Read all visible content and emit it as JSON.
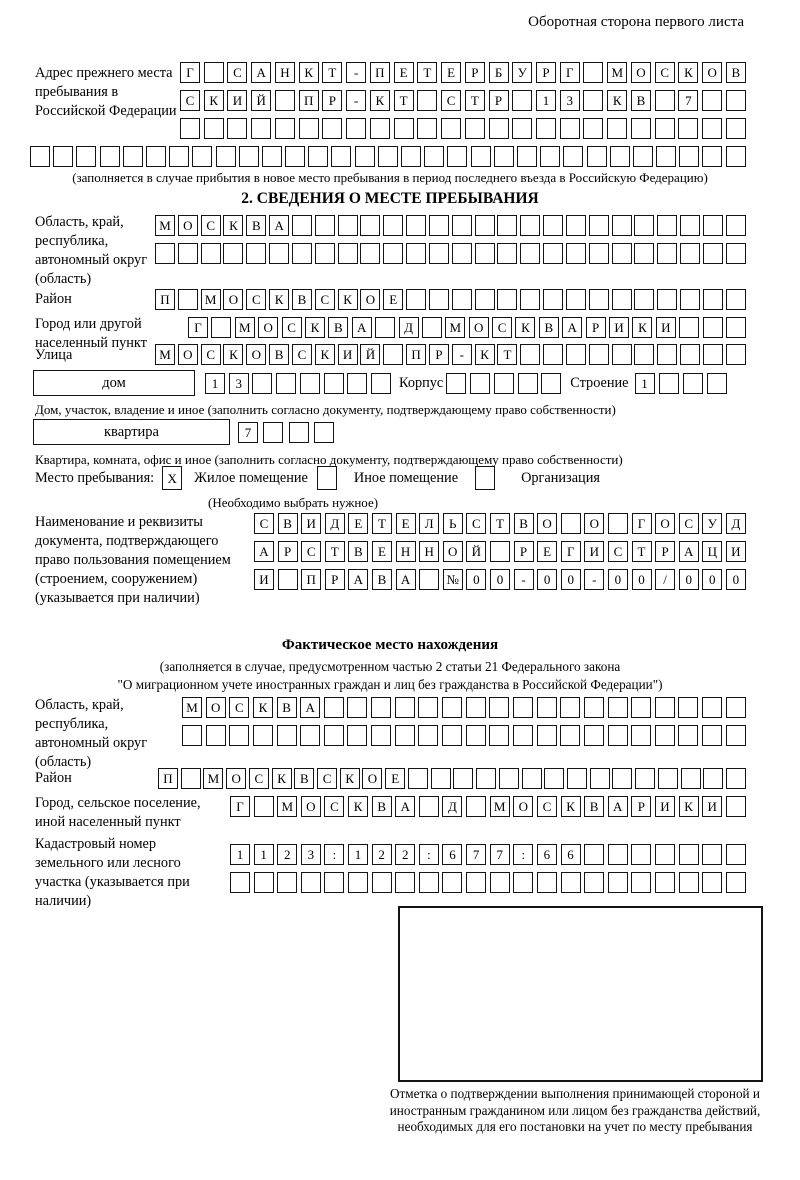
{
  "header_note": "Оборотная сторона первого листа",
  "prev_address": {
    "label": "Адрес прежнего места пребывания в Российской Федерации",
    "rows": [
      {
        "value": "Г САНКТ-ПЕТЕРБУРГ МОСКОВ",
        "len": 24
      },
      {
        "value": "СКИЙ ПР-КТ СТР 13 КВ 7",
        "len": 24
      },
      {
        "value": "",
        "len": 24
      },
      {
        "value": "",
        "len": 31
      }
    ],
    "note": "(заполняется в случае прибытия в новое место пребывания в период последнего въезда в Российскую Федерацию)"
  },
  "section2": {
    "title": "2. СВЕДЕНИЯ О МЕСТЕ ПРЕБЫВАНИЯ",
    "region": {
      "label": "Область, край, республика, автономный округ (область)",
      "rows": [
        {
          "value": "МОСКВА",
          "len": 26
        },
        {
          "value": "",
          "len": 26
        }
      ]
    },
    "district": {
      "label": "Район",
      "row": {
        "value": "П МОСКВСКОЕ",
        "len": 26
      }
    },
    "city": {
      "label": "Город или другой населенный пункт",
      "row": {
        "value": "Г МОСКВА Д МОСКВАРИКИ",
        "len": 24
      }
    },
    "street": {
      "label": "Улица",
      "row": {
        "value": "МОСКОВСКИЙ ПР-КТ",
        "len": 26
      }
    },
    "house": {
      "label": "дом",
      "row": {
        "value": "13",
        "len": 8
      },
      "korpus_label": "Корпус",
      "korpus_row": {
        "value": "",
        "len": 5
      },
      "stroenie_label": "Строение",
      "stroenie_row": {
        "value": "1",
        "len": 4
      },
      "note": "Дом, участок, владение и иное (заполнить согласно документу, подтверждающему право собственности)"
    },
    "apartment": {
      "label": "квартира",
      "row": {
        "value": "7",
        "len": 4
      },
      "note": "Квартира, комната, офис и иное (заполнить согласно документу, подтверждающему право собственности)"
    },
    "stay_type": {
      "label": "Место пребывания:",
      "options": [
        {
          "label": "Жилое помещение",
          "box": {
            "value": "X",
            "len": 1
          }
        },
        {
          "label": "Иное помещение",
          "box": {
            "value": "",
            "len": 1
          }
        },
        {
          "label": "Организация",
          "box": {
            "value": "",
            "len": 1
          }
        }
      ],
      "note": "(Необходимо выбрать нужное)"
    },
    "document": {
      "label": "Наименование и реквизиты документа, подтверждающего право пользования помещением (строением, сооружением) (указывается при наличии)",
      "rows": [
        {
          "value": "СВИДЕТЕЛЬСТВО О ГОСУД",
          "len": 21
        },
        {
          "value": "АРСТВЕННОЙ РЕГИСТРАЦИ",
          "len": 21
        },
        {
          "value": "И ПРАВА №00-00-00/000",
          "len": 21
        }
      ]
    }
  },
  "actual_location": {
    "title": "Фактическое место нахождения",
    "note_line1": "(заполняется в случае, предусмотренном частью 2 статьи 21 Федерального закона",
    "note_line2": "\"О миграционном учете иностранных граждан и лиц без гражданства в Российской Федерации\")",
    "region": {
      "label": "Область, край, республика, автономный округ (область)",
      "rows": [
        {
          "value": "МОСКВА",
          "len": 24
        },
        {
          "value": "",
          "len": 24
        }
      ]
    },
    "district": {
      "label": "Район",
      "row": {
        "value": "П МОСКВСКОЕ",
        "len": 26
      }
    },
    "city": {
      "label": "Город, сельское поселение, иной населенный пункт",
      "row": {
        "value": "Г МОСКВА Д МОСКВАРИКИ",
        "len": 22
      }
    },
    "cadastral": {
      "label": "Кадастровый номер земельного или лесного участка (указывается при наличии)",
      "rows": [
        {
          "value": "1123:122:677:66",
          "len": 22
        },
        {
          "value": "",
          "len": 22
        }
      ]
    },
    "stamp_note": "Отметка о подтверждении выполнения принимающей стороной и иностранным гражданином или лицом без гражданства действий, необходимых для его постановки на учет по месту пребывания"
  }
}
